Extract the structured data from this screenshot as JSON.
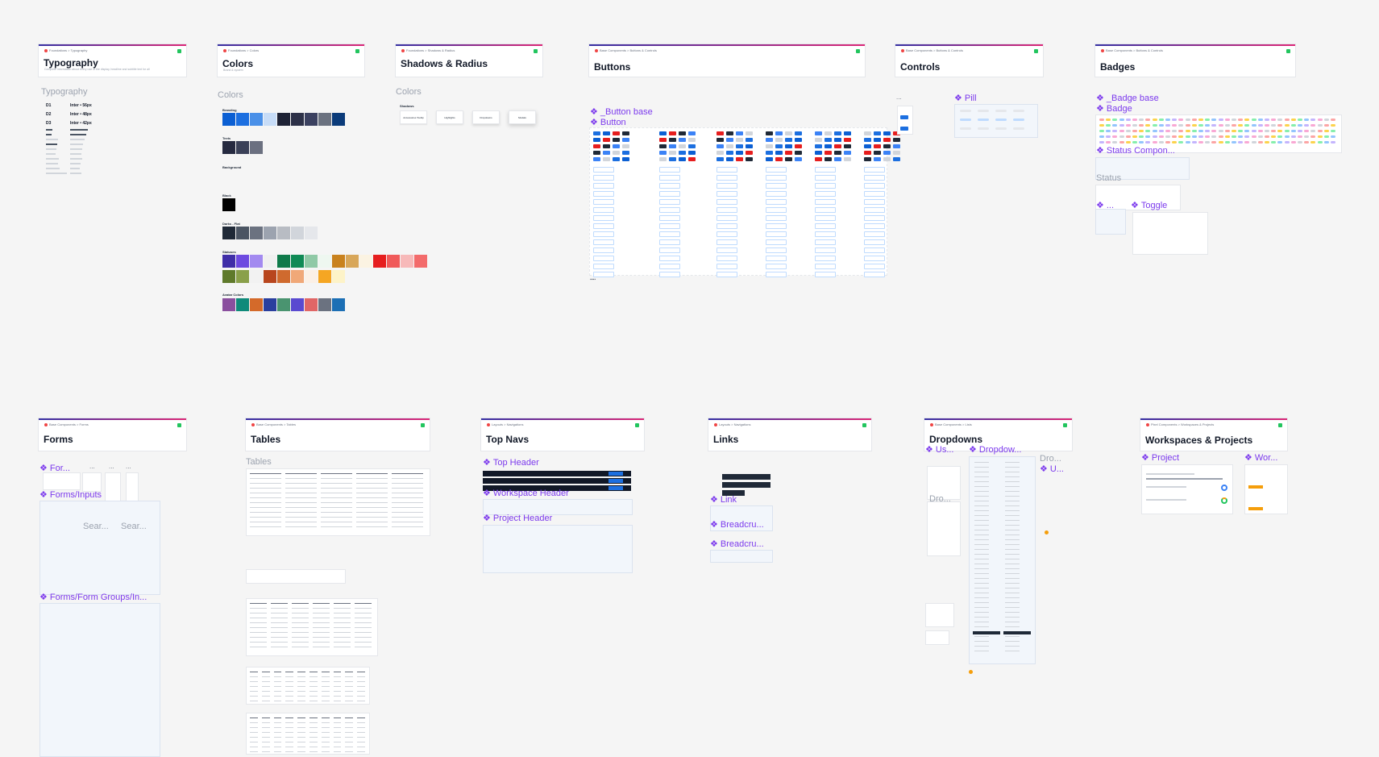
{
  "cards": [
    {
      "id": "typography",
      "crumb": "Foundations > Typography",
      "title": "Typography",
      "subtitle": "Complete information about every use of the display, headline and subtitle text for all"
    },
    {
      "id": "colors",
      "crumb": "Foundations > Colors",
      "title": "Colors",
      "subtitle": "Brand & system"
    },
    {
      "id": "shadows",
      "crumb": "Foundations > Shadows & Radius",
      "title": "Shadows & Radius",
      "subtitle": ""
    },
    {
      "id": "buttons",
      "crumb": "Base Components > Buttons & Controls",
      "title": "Buttons",
      "subtitle": ""
    },
    {
      "id": "controls",
      "crumb": "Base Components > Buttons & Controls",
      "title": "Controls",
      "subtitle": ""
    },
    {
      "id": "badges",
      "crumb": "Base Components > Buttons & Controls",
      "title": "Badges",
      "subtitle": ""
    },
    {
      "id": "forms",
      "crumb": "Base Components > Forms",
      "title": "Forms",
      "subtitle": ""
    },
    {
      "id": "tables",
      "crumb": "Base Components > Tables",
      "title": "Tables",
      "subtitle": ""
    },
    {
      "id": "topnavs",
      "crumb": "Layouts > Navigations",
      "title": "Top Navs",
      "subtitle": ""
    },
    {
      "id": "links",
      "crumb": "Layouts > Navigations",
      "title": "Links",
      "subtitle": ""
    },
    {
      "id": "dropdowns",
      "crumb": "Base Components > Lists",
      "title": "Dropdowns",
      "subtitle": ""
    },
    {
      "id": "workspaces",
      "crumb": "Pixel Components > Workspaces & Projects",
      "title": "Workspaces & Projects",
      "subtitle": ""
    }
  ],
  "section_labels": {
    "typography": "Typography",
    "colors": "Colors",
    "shadows": "Colors",
    "tables": "Tables",
    "status": "Status",
    "sear1": "Sear...",
    "sear2": "Sear...",
    "dro": "Dro...",
    "dro2": "Dro...",
    "dots1": "...",
    "dots2": "...",
    "dots3": "...",
    "dots4": "..."
  },
  "typography": [
    {
      "name": "D1",
      "spec": "Inter • 56px"
    },
    {
      "name": "D2",
      "spec": "Inter • 48px"
    },
    {
      "name": "D3",
      "spec": "Inter • 42px"
    }
  ],
  "color_groups": {
    "branding": "Branding",
    "texts": "Texts",
    "background": "Background",
    "black": "Black",
    "darks": "Darks - Flat",
    "statuses": "Statuses",
    "avatar": "Avatar Colors"
  },
  "colors": {
    "branding": [
      "#0b5fd3",
      "#1c6fe0",
      "#4a90e8",
      "#c7dcf7",
      "#1e2235",
      "#2d3148",
      "#3b4160",
      "#6b7280",
      "#0b3b7a"
    ],
    "texts": [
      "#262a40",
      "#3b4158",
      "#6b7080"
    ],
    "black": [
      "#000000"
    ],
    "darks": [
      "#1f2937",
      "#4b5563",
      "#6b7280",
      "#9ca3af",
      "#b8bcc3",
      "#d1d5db",
      "#e5e7eb"
    ],
    "statuses_row1": [
      "#3f2ea8",
      "#6d4ae0",
      "#a38af0",
      "#f0f0f0",
      "#0f7a4a",
      "#0f8a55",
      "#8fc9a6",
      "#eef7f0",
      "#c9821e",
      "#d8a75a",
      "#fbf3e2",
      "#e61e1e",
      "#f05a5a",
      "#f7b9b9",
      "#f36b6b"
    ],
    "statuses_row2": [
      "#5f7a2b",
      "#8aa04a",
      "#f2f2f2",
      "#b8461e",
      "#cf6a2e",
      "#f0a878",
      "#fbf0e6",
      "#f5a623",
      "#fdf3c8"
    ],
    "avatar": [
      "#8a4f9e",
      "#0f8a7a",
      "#d46a2a",
      "#2a3f9e",
      "#4a9470",
      "#5a4ad0",
      "#e06666",
      "#6b7280",
      "#1c6fb5"
    ]
  },
  "shadow_group": "Shadows",
  "shadows": [
    "Accessories Tooltip",
    "Highlights",
    "Dropdowns",
    "Modals"
  ],
  "components": {
    "button_base": "_Button base",
    "button": "Button",
    "pill": "Pill",
    "badge_base": "_Badge base",
    "badge": "Badge",
    "status_comp": "Status Compon...",
    "toggle": "Toggle",
    "forms_a": "For...",
    "forms_inputs": "Forms/Inputs",
    "forms_groups": "Forms/Form Groups/In...",
    "top_header": "Top Header",
    "workspace_header": "Workspace Header",
    "project_header": "Project Header",
    "link": "Link",
    "breadcru1": "Breadcru...",
    "breadcru2": "Breadcru...",
    "us": "Us...",
    "dropdow": "Dropdow...",
    "u": "U...",
    "empty": "...",
    "project": "Project",
    "wor": "Wor..."
  },
  "accent": "#7c3aed",
  "brand": "#0b5fd3"
}
